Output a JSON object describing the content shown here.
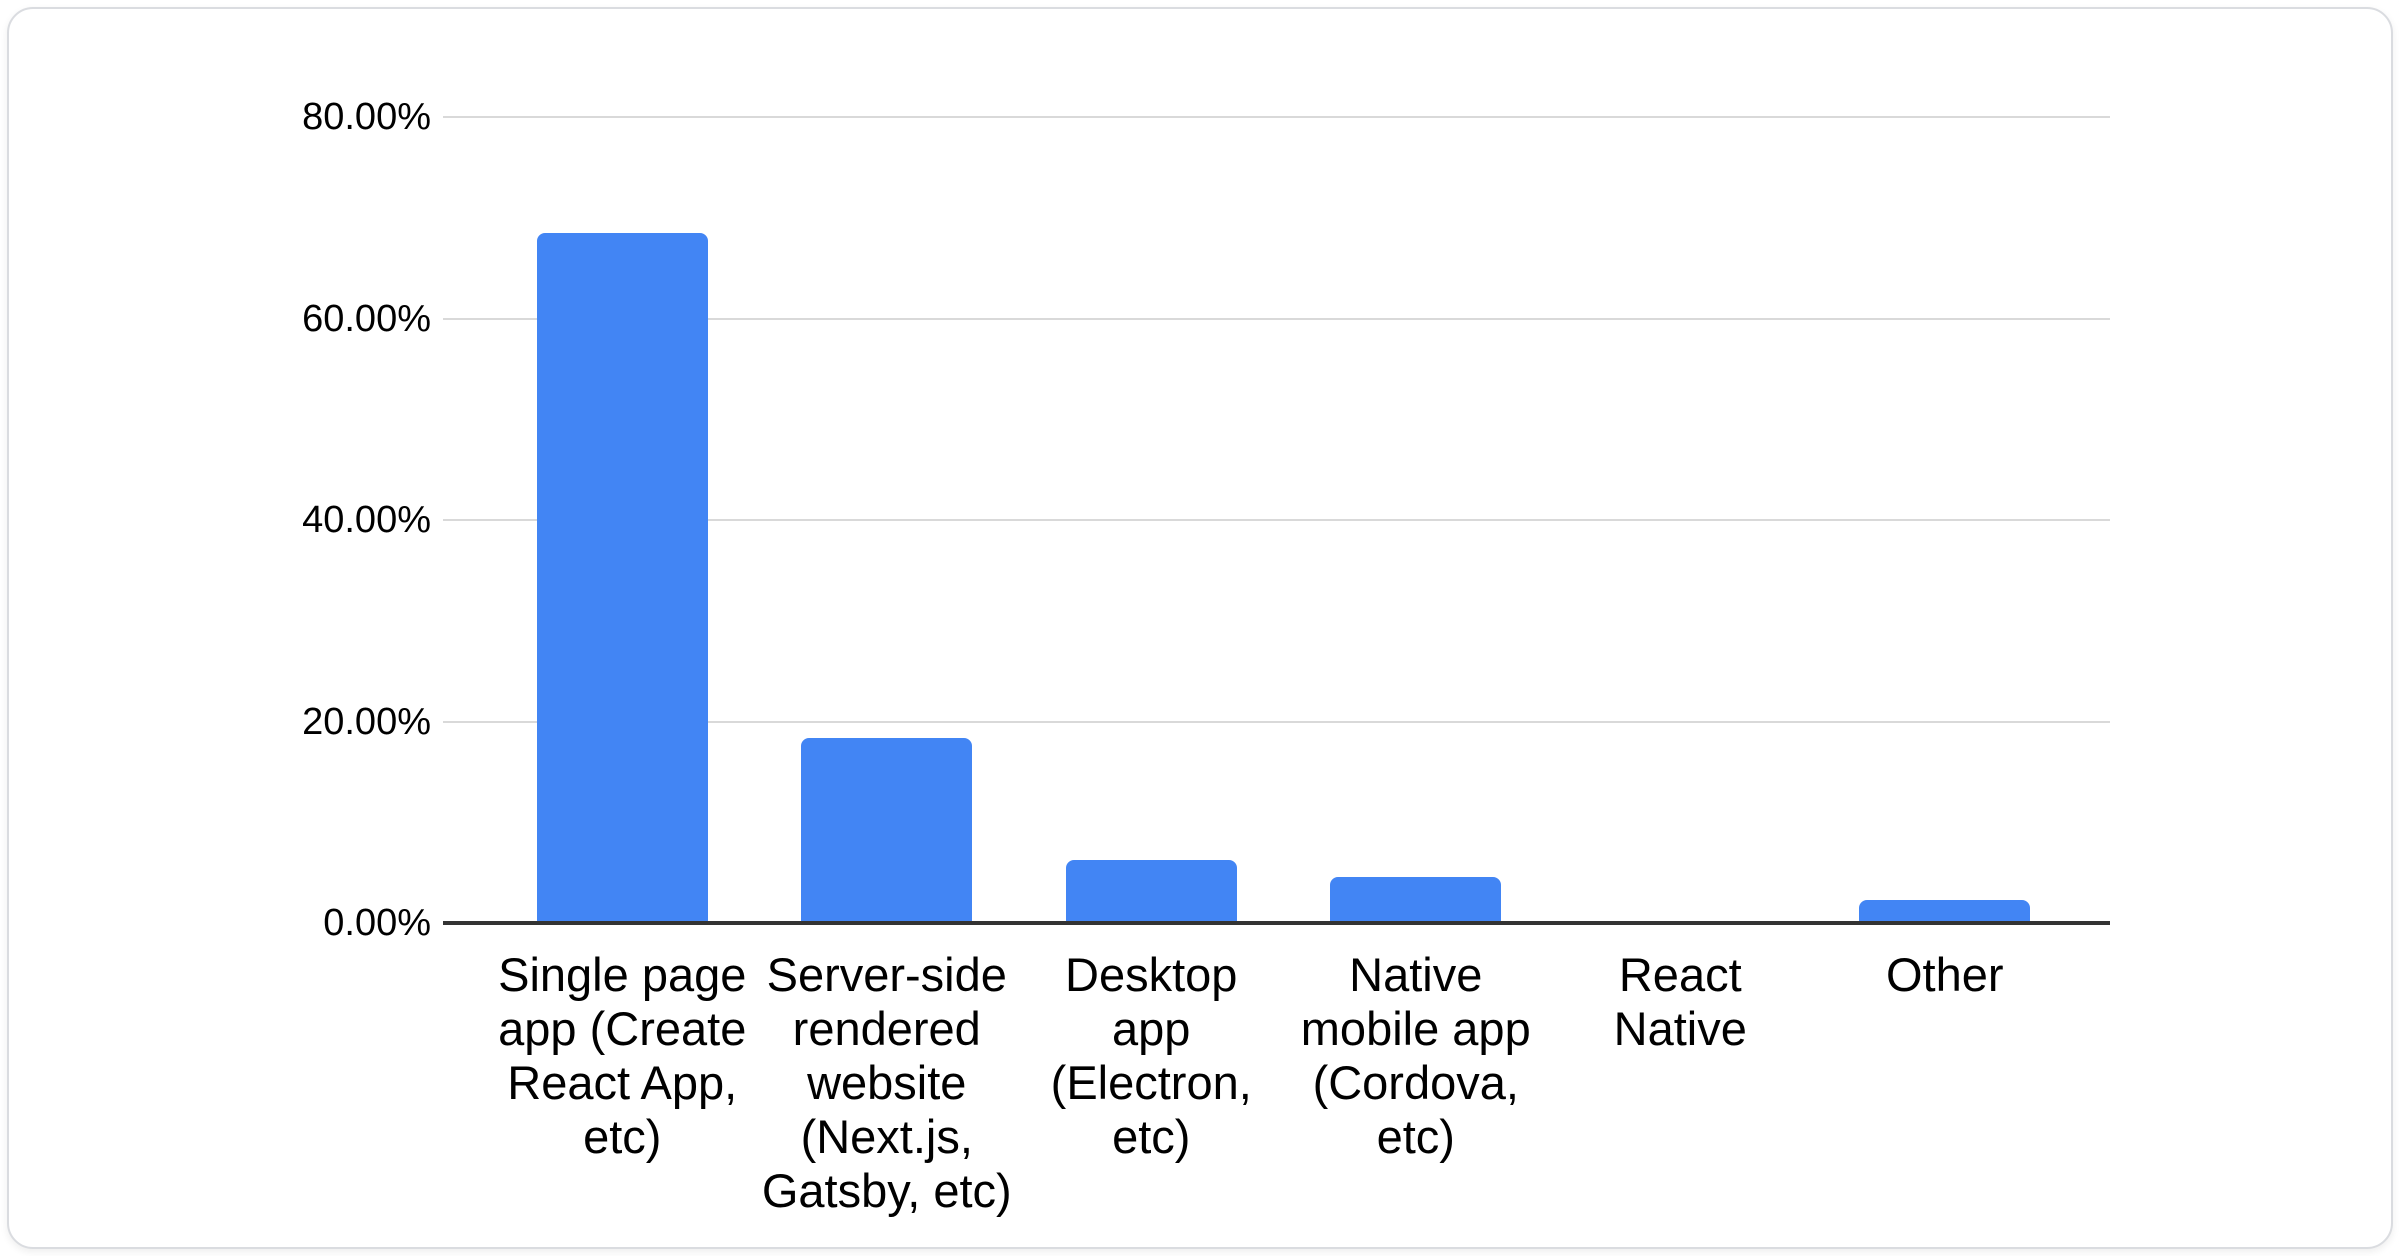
{
  "chart_data": {
    "type": "bar",
    "title": "",
    "categories": [
      "Single page app (Create React App, etc)",
      "Server-side rendered website (Next.js, Gatsby, etc)",
      "Desktop app (Electron, etc)",
      "Native mobile app (Cordova, etc)",
      "React Native",
      "Other"
    ],
    "categories_wrapped": [
      "Single page\napp (Create\nReact App,\netc)",
      "Server-side\nrendered\nwebsite\n(Next.js,\nGatsby, etc)",
      "Desktop\napp\n(Electron,\netc)",
      "Native\nmobile app\n(Cordova,\netc)",
      "React\nNative",
      "Other"
    ],
    "values": [
      68.5,
      18.4,
      6.3,
      4.6,
      0,
      2.3
    ],
    "xlabel": "",
    "ylabel": "",
    "ylim": [
      0,
      80
    ],
    "yticks": [
      80,
      60,
      40,
      20,
      0
    ],
    "ytick_labels": [
      "80.00%",
      "60.00%",
      "40.00%",
      "20.00%",
      "0.00%"
    ],
    "grid": true,
    "legend": "none",
    "colors": {
      "bar": "#4285f4",
      "gridline": "#d9d9d9",
      "axis_line": "#333333",
      "text": "#000000",
      "card_border": "#dadce0",
      "background": "#ffffff"
    }
  }
}
